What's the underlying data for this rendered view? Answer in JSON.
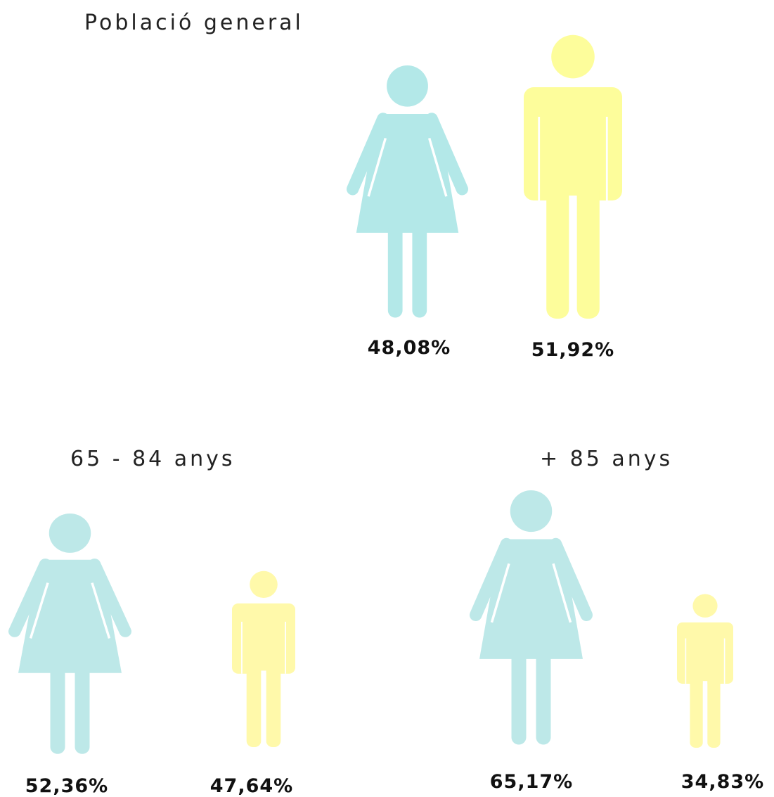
{
  "groups": [
    {
      "title": "Població general",
      "women": "48,08%",
      "men": "51,92%"
    },
    {
      "title": "65 - 84 anys",
      "women": "52,36%",
      "men": "47,64%"
    },
    {
      "title": "+ 85 anys",
      "women": "65,17%",
      "men": "34,83%"
    }
  ]
}
